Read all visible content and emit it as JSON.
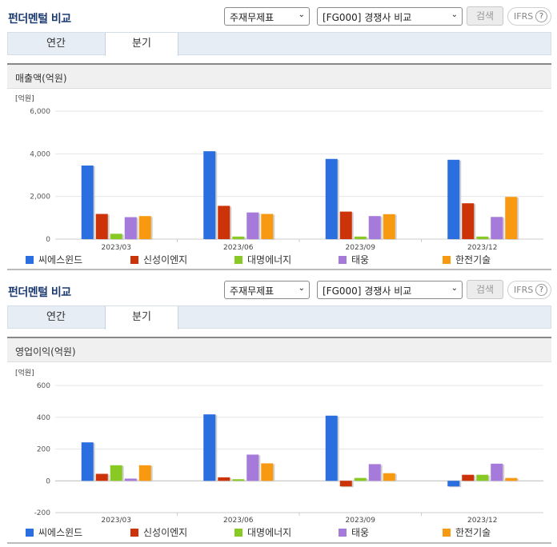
{
  "header_title": "펀더멘털 비교",
  "select_type": "주재무제표",
  "select_peer": "[FG000] 경쟁사 비교",
  "search_label": "검색",
  "ifrs_label": "IFRS",
  "help_glyph": "?",
  "tabs": [
    "연간",
    "분기"
  ],
  "active_tab": 1,
  "chart_data": [
    {
      "type": "bar",
      "title": "매출액(억원)",
      "unit_label": "[억원]",
      "categories": [
        "2023/03",
        "2023/06",
        "2023/09",
        "2023/12"
      ],
      "ylim": [
        0,
        6000
      ],
      "yticks": [
        0,
        2000,
        4000,
        6000
      ],
      "ytick_labels": [
        "0",
        "2,000",
        "4,000",
        "6,000"
      ],
      "grid": true,
      "legend": "bottom",
      "series": [
        {
          "name": "씨에스윈드",
          "color": "#2a6ee0",
          "values": [
            3450,
            4120,
            3760,
            3720
          ]
        },
        {
          "name": "신성이엔지",
          "color": "#cc3308",
          "values": [
            1180,
            1560,
            1290,
            1680
          ]
        },
        {
          "name": "대명에너지",
          "color": "#88c923",
          "values": [
            250,
            120,
            120,
            120
          ]
        },
        {
          "name": "태웅",
          "color": "#a67ada",
          "values": [
            1030,
            1250,
            1080,
            1040
          ]
        },
        {
          "name": "한전기술",
          "color": "#f79a12",
          "values": [
            1080,
            1180,
            1170,
            1980
          ]
        }
      ]
    },
    {
      "type": "bar",
      "title": "영업이익(억원)",
      "unit_label": "[억원]",
      "categories": [
        "2023/03",
        "2023/06",
        "2023/09",
        "2023/12"
      ],
      "ylim": [
        -200,
        600
      ],
      "yticks": [
        -200,
        0,
        200,
        400,
        600
      ],
      "ytick_labels": [
        "-200",
        "0",
        "200",
        "400",
        "600"
      ],
      "grid": true,
      "legend": "bottom",
      "series": [
        {
          "name": "씨에스윈드",
          "color": "#2a6ee0",
          "values": [
            242,
            418,
            410,
            -35
          ]
        },
        {
          "name": "신성이엔지",
          "color": "#cc3308",
          "values": [
            44,
            22,
            -35,
            38
          ]
        },
        {
          "name": "대명에너지",
          "color": "#88c923",
          "values": [
            98,
            10,
            18,
            38
          ]
        },
        {
          "name": "태웅",
          "color": "#a67ada",
          "values": [
            14,
            165,
            105,
            108
          ]
        },
        {
          "name": "한전기술",
          "color": "#f79a12",
          "values": [
            98,
            110,
            48,
            18
          ]
        }
      ]
    }
  ]
}
